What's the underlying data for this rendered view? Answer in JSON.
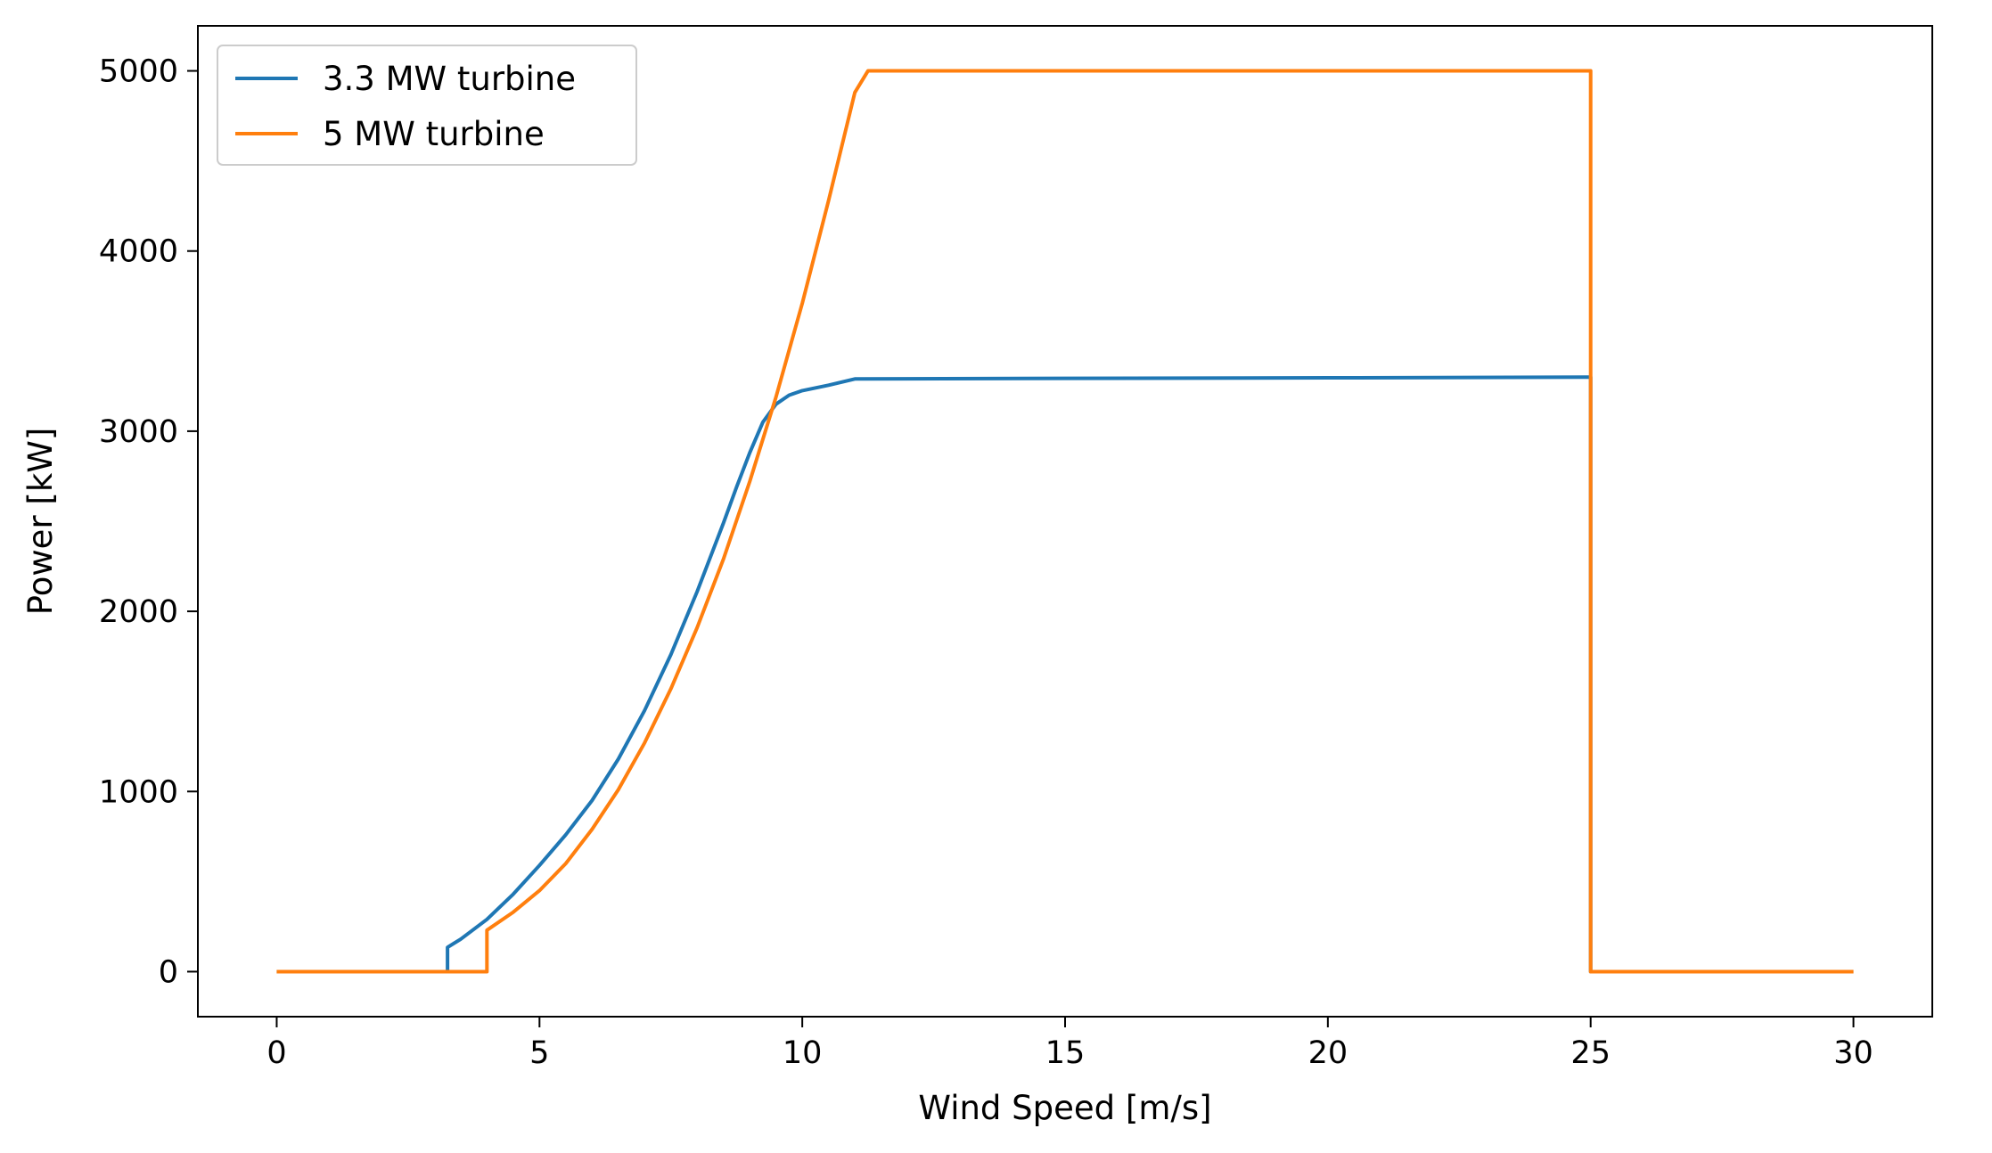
{
  "chart_data": {
    "type": "line",
    "title": "",
    "xlabel": "Wind Speed [m/s]",
    "ylabel": "Power [kW]",
    "xlim": [
      -1.5,
      31.5
    ],
    "ylim": [
      -250,
      5250
    ],
    "xticks": [
      0,
      5,
      10,
      15,
      20,
      25,
      30
    ],
    "yticks": [
      0,
      1000,
      2000,
      3000,
      4000,
      5000
    ],
    "grid": false,
    "legend_position": "top-left",
    "series": [
      {
        "name": "3.3 MW turbine",
        "color": "#1f77b4",
        "points": [
          [
            0,
            0
          ],
          [
            3.25,
            0
          ],
          [
            3.25,
            135
          ],
          [
            3.5,
            180
          ],
          [
            4.0,
            290
          ],
          [
            4.5,
            430
          ],
          [
            5.0,
            590
          ],
          [
            5.5,
            760
          ],
          [
            6.0,
            950
          ],
          [
            6.5,
            1180
          ],
          [
            7.0,
            1450
          ],
          [
            7.5,
            1760
          ],
          [
            8.0,
            2110
          ],
          [
            8.5,
            2490
          ],
          [
            8.75,
            2690
          ],
          [
            9.0,
            2880
          ],
          [
            9.25,
            3050
          ],
          [
            9.5,
            3150
          ],
          [
            9.75,
            3200
          ],
          [
            10.0,
            3225
          ],
          [
            10.5,
            3255
          ],
          [
            11.0,
            3290
          ],
          [
            15.0,
            3293
          ],
          [
            20.0,
            3296
          ],
          [
            25.0,
            3300
          ],
          [
            25.0,
            0
          ],
          [
            30.0,
            0
          ]
        ]
      },
      {
        "name": "5 MW turbine",
        "color": "#ff7f0e",
        "points": [
          [
            0,
            0
          ],
          [
            4.0,
            0
          ],
          [
            4.0,
            230
          ],
          [
            4.5,
            330
          ],
          [
            5.0,
            450
          ],
          [
            5.5,
            600
          ],
          [
            6.0,
            790
          ],
          [
            6.5,
            1010
          ],
          [
            7.0,
            1270
          ],
          [
            7.5,
            1570
          ],
          [
            8.0,
            1910
          ],
          [
            8.5,
            2290
          ],
          [
            9.0,
            2720
          ],
          [
            9.5,
            3190
          ],
          [
            10.0,
            3710
          ],
          [
            10.5,
            4280
          ],
          [
            11.0,
            4880
          ],
          [
            11.25,
            5000
          ],
          [
            11.5,
            5000
          ],
          [
            25.0,
            5000
          ],
          [
            25.0,
            0
          ],
          [
            30.0,
            0
          ]
        ]
      }
    ]
  }
}
